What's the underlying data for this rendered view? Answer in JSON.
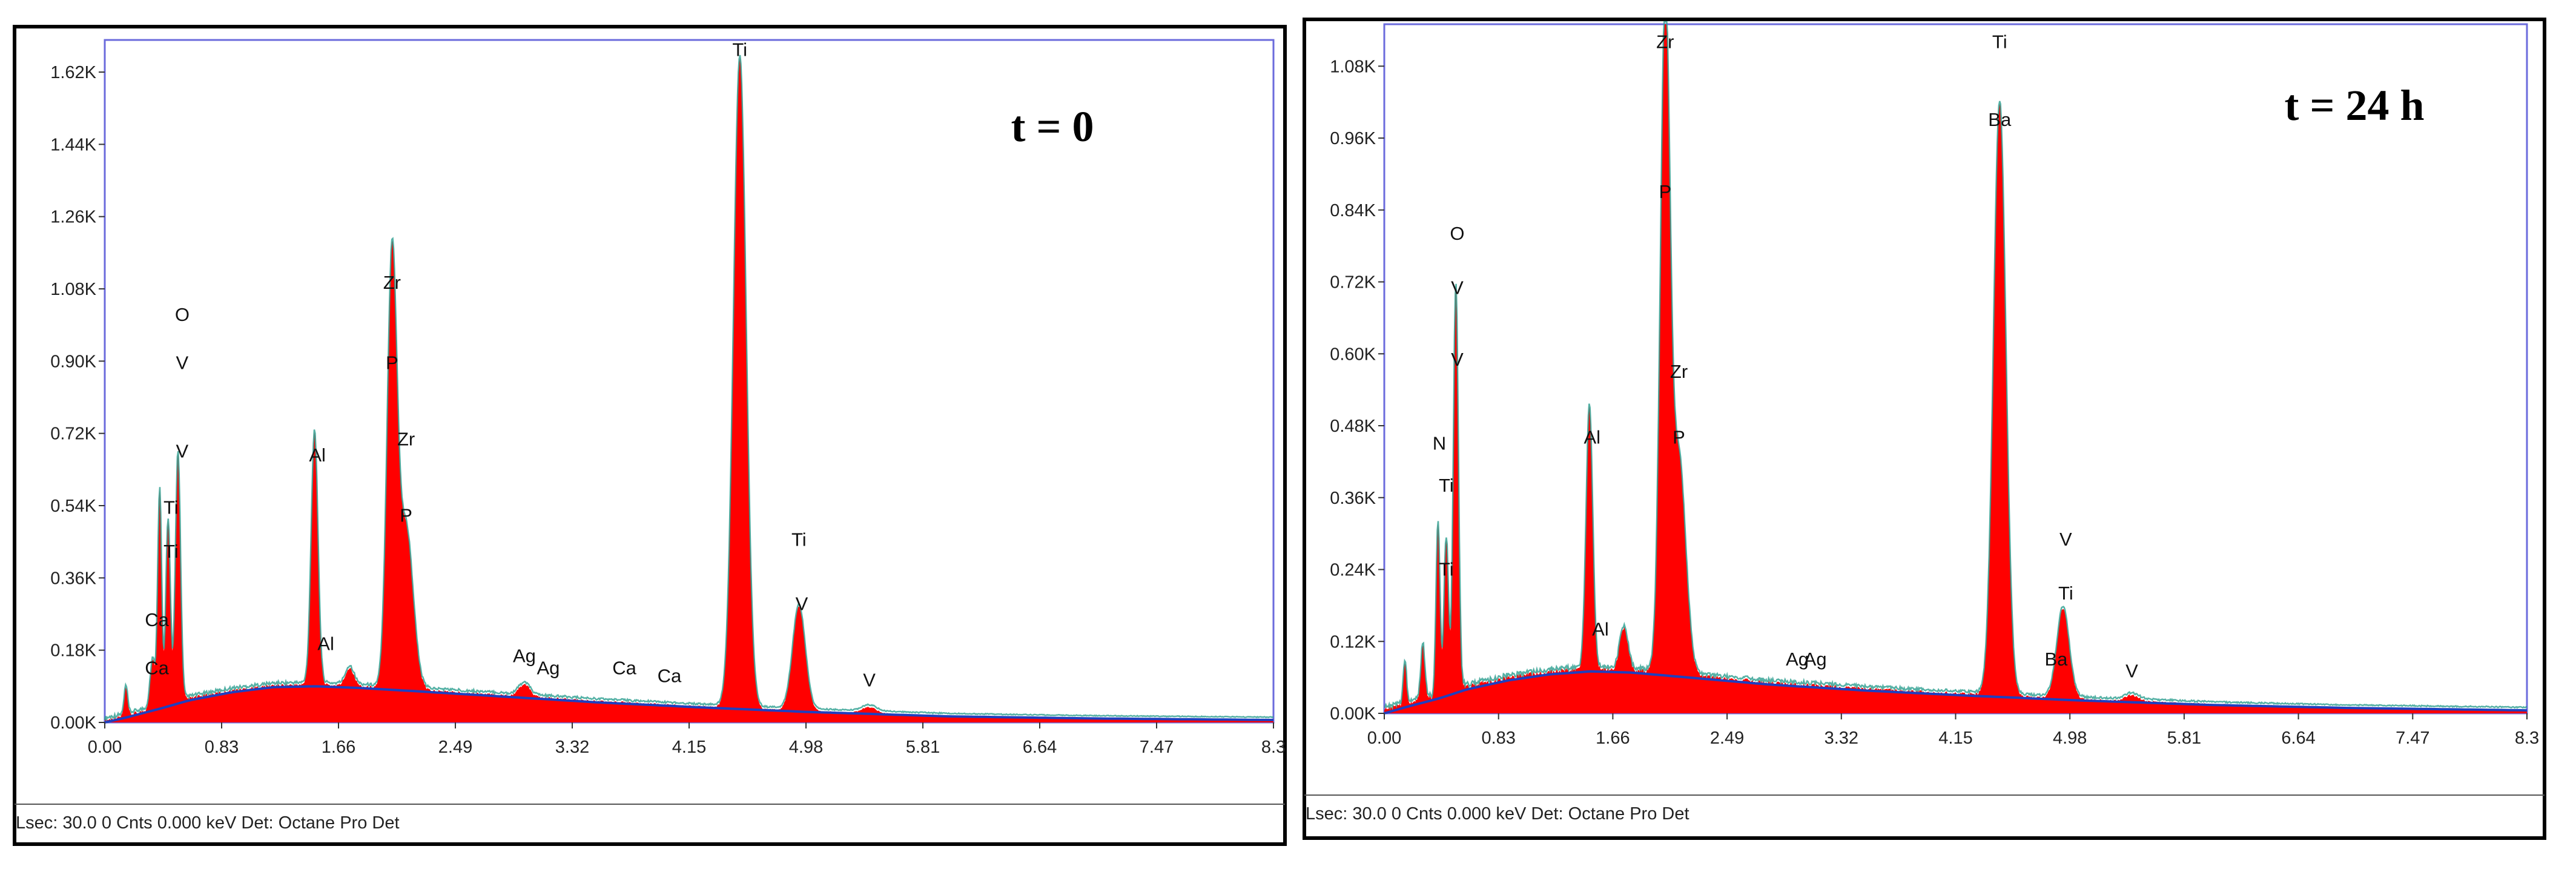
{
  "colors": {
    "fill": "#ff0000",
    "peak_line": "#2a9d8f",
    "background_line": "#1f3fbf",
    "plot_border": "#6b6bdc",
    "frame": "#000000"
  },
  "chart_data": [
    {
      "type": "area",
      "panel": "left",
      "title": "",
      "annotation": "t = 0",
      "xlabel": "",
      "ylabel": "",
      "xlim": [
        0,
        8.3
      ],
      "ylim": [
        0,
        1700
      ],
      "x_ticks": [
        0.0,
        0.83,
        1.66,
        2.49,
        3.32,
        4.15,
        4.98,
        5.81,
        6.64,
        7.47,
        8.3
      ],
      "x_tick_labels": [
        "0.00",
        "0.83",
        "1.66",
        "2.49",
        "3.32",
        "4.15",
        "4.98",
        "5.81",
        "6.64",
        "7.47",
        "8.3"
      ],
      "y_ticks": [
        0,
        180,
        360,
        540,
        720,
        900,
        1080,
        1260,
        1440,
        1620
      ],
      "y_tick_labels": [
        "0.00K",
        "0.18K",
        "0.36K",
        "0.54K",
        "0.72K",
        "0.90K",
        "1.08K",
        "1.26K",
        "1.44K",
        "1.62K"
      ],
      "grid": false,
      "status_text": "Lsec: 30.0 0 Cnts  0.000 keV Det: Octane Pro Det",
      "background": {
        "x": [
          0.0,
          0.15,
          0.4,
          0.6,
          0.9,
          1.2,
          1.5,
          1.8,
          2.2,
          2.8,
          3.5,
          4.2,
          5.0,
          6.0,
          7.0,
          8.3
        ],
        "y": [
          0,
          12,
          35,
          55,
          75,
          88,
          90,
          86,
          78,
          65,
          50,
          38,
          26,
          15,
          10,
          6
        ]
      },
      "peaks": [
        {
          "x": 0.15,
          "y": 70,
          "w": 0.012
        },
        {
          "x": 0.34,
          "y": 120,
          "w": 0.018
        },
        {
          "x": 0.39,
          "y": 540,
          "w": 0.014
        },
        {
          "x": 0.45,
          "y": 460,
          "w": 0.016
        },
        {
          "x": 0.52,
          "y": 620,
          "w": 0.018
        },
        {
          "x": 1.49,
          "y": 630,
          "w": 0.024
        },
        {
          "x": 1.74,
          "y": 45,
          "w": 0.03
        },
        {
          "x": 2.04,
          "y": 1060,
          "w": 0.035
        },
        {
          "x": 2.14,
          "y": 400,
          "w": 0.05
        },
        {
          "x": 2.98,
          "y": 30,
          "w": 0.04
        },
        {
          "x": 4.51,
          "y": 1620,
          "w": 0.045
        },
        {
          "x": 4.93,
          "y": 260,
          "w": 0.045
        },
        {
          "x": 5.43,
          "y": 15,
          "w": 0.05
        }
      ],
      "labels": [
        {
          "text": "O",
          "x": 0.55,
          "y": 1000
        },
        {
          "text": "V",
          "x": 0.55,
          "y": 880
        },
        {
          "text": "V",
          "x": 0.55,
          "y": 660
        },
        {
          "text": "Ti",
          "x": 0.47,
          "y": 520
        },
        {
          "text": "Ti",
          "x": 0.47,
          "y": 410
        },
        {
          "text": "Ca",
          "x": 0.37,
          "y": 240
        },
        {
          "text": "Ca",
          "x": 0.37,
          "y": 120
        },
        {
          "text": "Al",
          "x": 1.51,
          "y": 650
        },
        {
          "text": "Al",
          "x": 1.57,
          "y": 180
        },
        {
          "text": "Zr",
          "x": 2.04,
          "y": 1080
        },
        {
          "text": "P",
          "x": 2.04,
          "y": 880
        },
        {
          "text": "Zr",
          "x": 2.14,
          "y": 690
        },
        {
          "text": "P",
          "x": 2.14,
          "y": 500
        },
        {
          "text": "Ag",
          "x": 2.98,
          "y": 150
        },
        {
          "text": "Ag",
          "x": 3.15,
          "y": 120
        },
        {
          "text": "Ca",
          "x": 3.69,
          "y": 120
        },
        {
          "text": "Ca",
          "x": 4.01,
          "y": 100
        },
        {
          "text": "Ti",
          "x": 4.51,
          "y": 1660
        },
        {
          "text": "Ti",
          "x": 4.93,
          "y": 440
        },
        {
          "text": "V",
          "x": 4.95,
          "y": 280
        },
        {
          "text": "V",
          "x": 5.43,
          "y": 90
        }
      ]
    },
    {
      "type": "area",
      "panel": "right",
      "title": "",
      "annotation": "t = 24 h",
      "xlabel": "",
      "ylabel": "",
      "xlim": [
        0,
        8.3
      ],
      "ylim": [
        0,
        1150
      ],
      "x_ticks": [
        0.0,
        0.83,
        1.66,
        2.49,
        3.32,
        4.15,
        4.98,
        5.81,
        6.64,
        7.47,
        8.3
      ],
      "x_tick_labels": [
        "0.00",
        "0.83",
        "1.66",
        "2.49",
        "3.32",
        "4.15",
        "4.98",
        "5.81",
        "6.64",
        "7.47",
        "8.3"
      ],
      "y_ticks": [
        0,
        120,
        240,
        360,
        480,
        600,
        720,
        840,
        960,
        1080
      ],
      "y_tick_labels": [
        "0.00K",
        "0.12K",
        "0.24K",
        "0.36K",
        "0.48K",
        "0.60K",
        "0.72K",
        "0.84K",
        "0.96K",
        "1.08K"
      ],
      "grid": false,
      "status_text": "Lsec: 30.0 0 Cnts  0.000 keV Det: Octane Pro Det",
      "background": {
        "x": [
          0.0,
          0.15,
          0.4,
          0.6,
          0.9,
          1.2,
          1.5,
          1.8,
          2.2,
          2.8,
          3.5,
          4.2,
          5.0,
          6.0,
          7.0,
          8.3
        ],
        "y": [
          0,
          10,
          25,
          40,
          55,
          65,
          70,
          68,
          60,
          48,
          38,
          30,
          22,
          14,
          9,
          5
        ]
      },
      "peaks": [
        {
          "x": 0.15,
          "y": 70,
          "w": 0.012
        },
        {
          "x": 0.28,
          "y": 90,
          "w": 0.015
        },
        {
          "x": 0.39,
          "y": 290,
          "w": 0.014
        },
        {
          "x": 0.45,
          "y": 260,
          "w": 0.016
        },
        {
          "x": 0.52,
          "y": 680,
          "w": 0.018
        },
        {
          "x": 1.49,
          "y": 440,
          "w": 0.024
        },
        {
          "x": 1.74,
          "y": 70,
          "w": 0.03
        },
        {
          "x": 2.04,
          "y": 1100,
          "w": 0.035
        },
        {
          "x": 2.14,
          "y": 360,
          "w": 0.05
        },
        {
          "x": 4.47,
          "y": 990,
          "w": 0.045
        },
        {
          "x": 4.93,
          "y": 150,
          "w": 0.045
        },
        {
          "x": 5.43,
          "y": 10,
          "w": 0.05
        }
      ],
      "labels": [
        {
          "text": "O",
          "x": 0.53,
          "y": 790
        },
        {
          "text": "V",
          "x": 0.53,
          "y": 700
        },
        {
          "text": "V",
          "x": 0.53,
          "y": 580
        },
        {
          "text": "N",
          "x": 0.4,
          "y": 440
        },
        {
          "text": "Ti",
          "x": 0.45,
          "y": 370
        },
        {
          "text": "Ti",
          "x": 0.45,
          "y": 230
        },
        {
          "text": "Al",
          "x": 1.51,
          "y": 450
        },
        {
          "text": "Al",
          "x": 1.57,
          "y": 130
        },
        {
          "text": "Zr",
          "x": 2.04,
          "y": 1110
        },
        {
          "text": "P",
          "x": 2.04,
          "y": 860
        },
        {
          "text": "Zr",
          "x": 2.14,
          "y": 560
        },
        {
          "text": "P",
          "x": 2.14,
          "y": 450
        },
        {
          "text": "Ag",
          "x": 3.0,
          "y": 80
        },
        {
          "text": "Ag",
          "x": 3.13,
          "y": 80
        },
        {
          "text": "Ti",
          "x": 4.47,
          "y": 1110
        },
        {
          "text": "Ba",
          "x": 4.47,
          "y": 980
        },
        {
          "text": "V",
          "x": 4.95,
          "y": 280
        },
        {
          "text": "Ti",
          "x": 4.95,
          "y": 190
        },
        {
          "text": "Ba",
          "x": 4.88,
          "y": 80
        },
        {
          "text": "V",
          "x": 5.43,
          "y": 60
        }
      ]
    }
  ]
}
